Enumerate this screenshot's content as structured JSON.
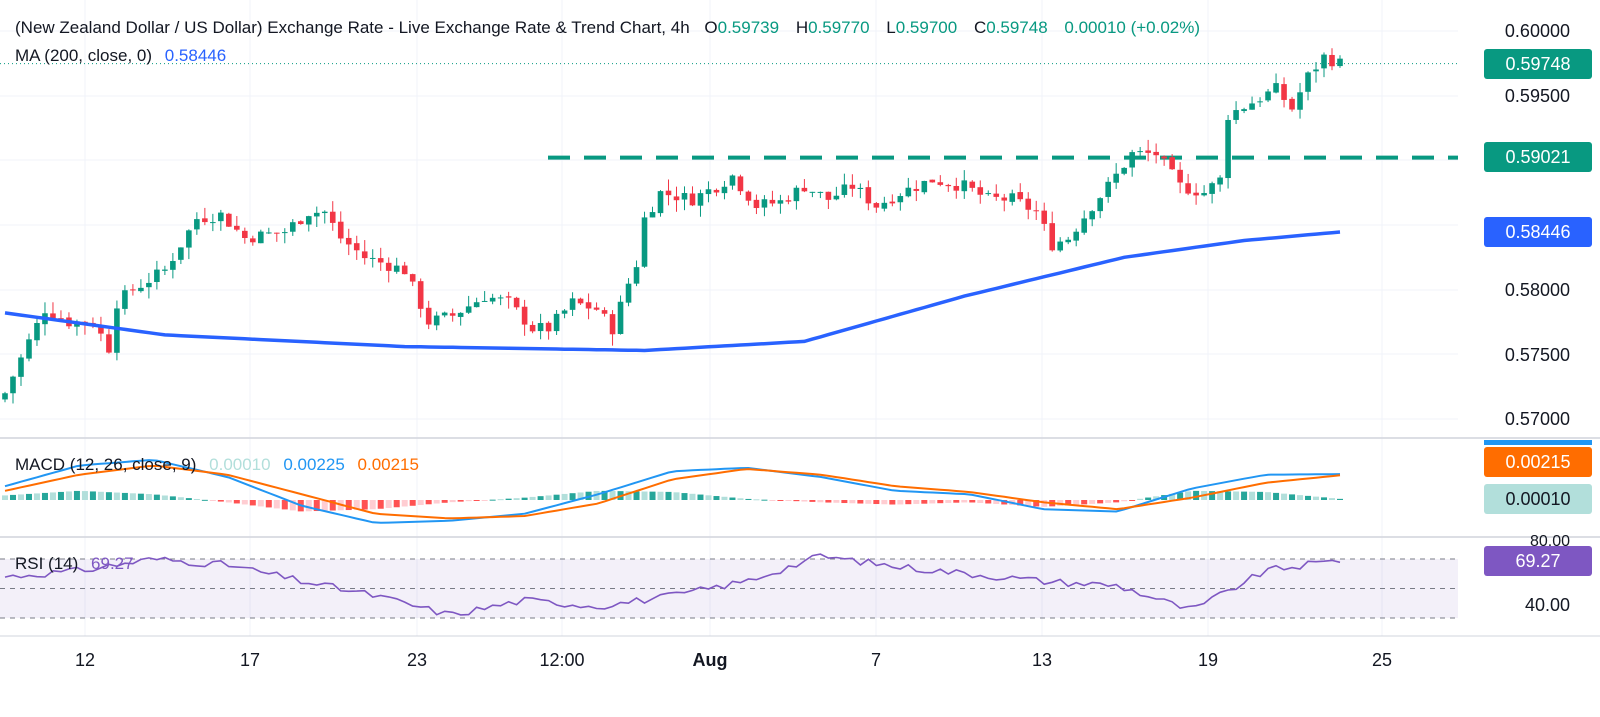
{
  "header": {
    "title": "(New Zealand Dollar / US Dollar) Exchange Rate - Live Exchange Rate & Trend Chart, 4h",
    "o_key": "O",
    "o_val": "0.59739",
    "h_key": "H",
    "h_val": "0.59770",
    "l_key": "L",
    "l_val": "0.59700",
    "c_key": "C",
    "c_val": "0.59748",
    "change": "0.00010 (+0.02%)",
    "ma_label": "MA (200, close, 0)",
    "ma_value": "0.58446",
    "macd_label": "MACD (12, 26, close, 9)",
    "macd_hist_val": "0.00010",
    "macd_line_val": "0.00225",
    "macd_signal_val": "0.00215",
    "rsi_label": "RSI (14)",
    "rsi_val": "69.27"
  },
  "price_tags": {
    "last": "0.59748",
    "resistance": "0.59021",
    "ma": "0.58446",
    "macd_signal": "0.00215",
    "macd_hist": "0.00010",
    "rsi": "69.27"
  },
  "colors": {
    "up": "#089981",
    "down": "#f23645",
    "ma": "#2962ff",
    "macd": "#2196f3",
    "signal": "#ff6d00",
    "rsi": "#7e57c2",
    "resistance": "#089981"
  },
  "chart_data": [
    {
      "type": "candlestick",
      "title": "NZD/USD 4h",
      "x_tick_labels": [
        "12",
        "17",
        "23",
        "12:00",
        "Aug",
        "7",
        "13",
        "19",
        "25"
      ],
      "y_tick_labels": [
        "0.60000",
        "0.59500",
        "0.58000",
        "0.57500",
        "0.57000"
      ],
      "ylim": [
        0.5685,
        0.6016
      ],
      "resistance_level": 0.59021,
      "close_path_anchors": [
        [
          0,
          0.572
        ],
        [
          3,
          0.576
        ],
        [
          5,
          0.5785
        ],
        [
          8,
          0.5775
        ],
        [
          11,
          0.5775
        ],
        [
          13,
          0.5755
        ],
        [
          14,
          0.579
        ],
        [
          16,
          0.58
        ],
        [
          20,
          0.5815
        ],
        [
          24,
          0.5855
        ],
        [
          27,
          0.5858
        ],
        [
          30,
          0.584
        ],
        [
          35,
          0.5845
        ],
        [
          38,
          0.586
        ],
        [
          40,
          0.586
        ],
        [
          42,
          0.584
        ],
        [
          45,
          0.5825
        ],
        [
          50,
          0.5815
        ],
        [
          53,
          0.5775
        ],
        [
          56,
          0.578
        ],
        [
          60,
          0.5795
        ],
        [
          63,
          0.579
        ],
        [
          66,
          0.577
        ],
        [
          68,
          0.577
        ],
        [
          71,
          0.579
        ],
        [
          74,
          0.5785
        ],
        [
          76,
          0.577
        ],
        [
          78,
          0.5805
        ],
        [
          79,
          0.582
        ],
        [
          80,
          0.5855
        ],
        [
          82,
          0.5875
        ],
        [
          86,
          0.587
        ],
        [
          89,
          0.588
        ],
        [
          91,
          0.5888
        ],
        [
          94,
          0.5865
        ],
        [
          97,
          0.5868
        ],
        [
          100,
          0.588
        ],
        [
          103,
          0.587
        ],
        [
          106,
          0.588
        ],
        [
          109,
          0.5865
        ],
        [
          112,
          0.5875
        ],
        [
          116,
          0.5885
        ],
        [
          120,
          0.588
        ],
        [
          123,
          0.587
        ],
        [
          126,
          0.587
        ],
        [
          129,
          0.586
        ],
        [
          131,
          0.5835
        ],
        [
          133,
          0.584
        ],
        [
          136,
          0.5865
        ],
        [
          138,
          0.588
        ],
        [
          141,
          0.5905
        ],
        [
          144,
          0.5905
        ],
        [
          147,
          0.588
        ],
        [
          150,
          0.5875
        ],
        [
          152,
          0.5885
        ],
        [
          153,
          0.5935
        ],
        [
          156,
          0.5945
        ],
        [
          159,
          0.5955
        ],
        [
          161,
          0.594
        ],
        [
          163,
          0.5965
        ],
        [
          165,
          0.598
        ],
        [
          167,
          0.5975
        ]
      ],
      "ma200_anchors": [
        [
          0,
          0.5782
        ],
        [
          20,
          0.5765
        ],
        [
          50,
          0.5756
        ],
        [
          80,
          0.5753
        ],
        [
          100,
          0.576
        ],
        [
          120,
          0.5795
        ],
        [
          140,
          0.5825
        ],
        [
          155,
          0.5838
        ],
        [
          167,
          0.58446
        ]
      ],
      "last_close": 0.59748,
      "ma200_last": 0.58446
    },
    {
      "type": "line",
      "title": "MACD (12, 26, close, 9)",
      "series": [
        {
          "name": "MACD",
          "values": [
            0.0012,
            0.003,
            0.0035,
            0.002,
            -0.0005,
            -0.002,
            -0.0018,
            -0.0012,
            0.0005,
            0.0025,
            0.0028,
            0.002,
            0.0008,
            0.0005,
            -0.0008,
            -0.001,
            0.001,
            0.0022,
            0.00225
          ]
        },
        {
          "name": "Signal",
          "values": [
            0.0008,
            0.0022,
            0.003,
            0.0022,
            0.0005,
            -0.0012,
            -0.0016,
            -0.0014,
            -0.0003,
            0.0018,
            0.0027,
            0.0022,
            0.0012,
            0.0007,
            -0.0002,
            -0.0008,
            0.0002,
            0.0015,
            0.00215
          ]
        }
      ]
    },
    {
      "type": "line",
      "title": "RSI (14)",
      "ylim": [
        20,
        80
      ],
      "y_tick_labels": [
        "80.00",
        "40.00"
      ],
      "series": [
        {
          "name": "RSI",
          "values": [
            58,
            62,
            70,
            66,
            55,
            45,
            32,
            42,
            38,
            45,
            55,
            72,
            65,
            60,
            55,
            52,
            35,
            62,
            69.27
          ]
        }
      ]
    }
  ]
}
